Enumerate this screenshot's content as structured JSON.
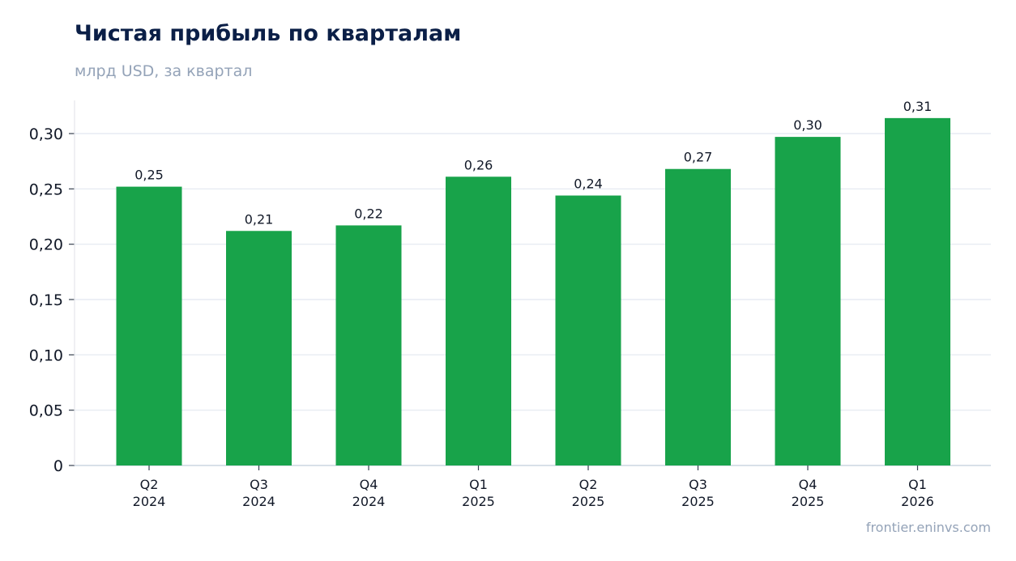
{
  "chart_data": {
    "type": "bar",
    "title": "Чистая прибыль по кварталам",
    "subtitle": "млрд USD, за квартал",
    "categories": [
      [
        "Q2",
        "2024"
      ],
      [
        "Q3",
        "2024"
      ],
      [
        "Q4",
        "2024"
      ],
      [
        "Q1",
        "2025"
      ],
      [
        "Q2",
        "2025"
      ],
      [
        "Q3",
        "2025"
      ],
      [
        "Q4",
        "2025"
      ],
      [
        "Q1",
        "2026"
      ]
    ],
    "values": [
      0.252,
      0.212,
      0.217,
      0.261,
      0.244,
      0.268,
      0.297,
      0.314
    ],
    "data_labels": [
      "0,25",
      "0,21",
      "0,22",
      "0,26",
      "0,24",
      "0,27",
      "0,30",
      "0,31"
    ],
    "ylim": [
      0,
      0.33
    ],
    "yticks": [
      0,
      0.05,
      0.1,
      0.15,
      0.2,
      0.25,
      0.3
    ],
    "ytick_labels": [
      "0",
      "0,05",
      "0,10",
      "0,15",
      "0,20",
      "0,25",
      "0,30"
    ],
    "grid": true,
    "legend": "none",
    "bar_color": "#18a34a",
    "grid_color": "#e2e8f0",
    "axis_color": "#cbd5e1"
  },
  "source": "frontier.eninvs.com"
}
